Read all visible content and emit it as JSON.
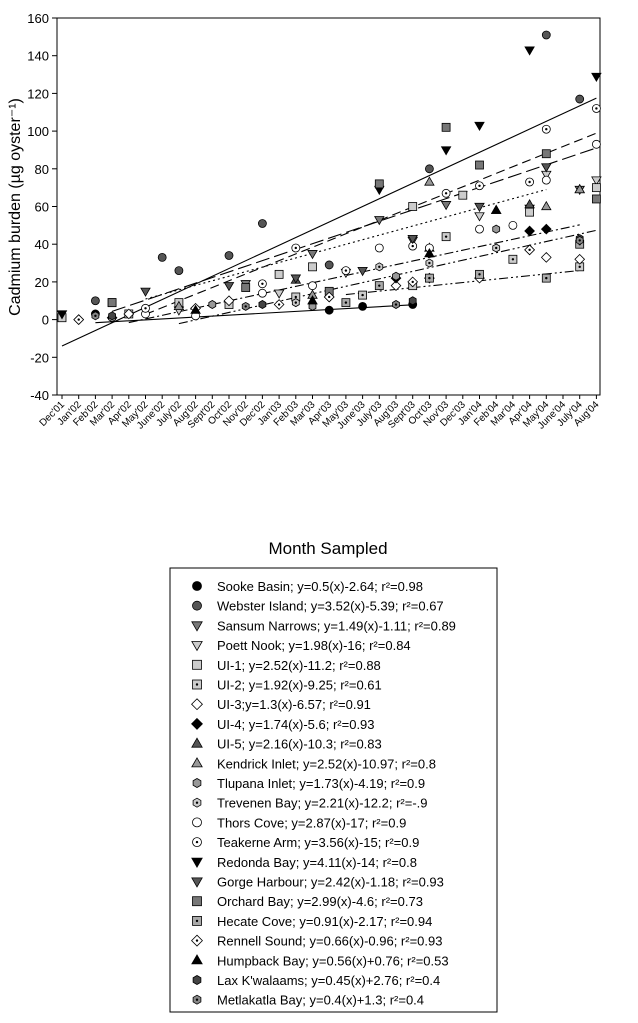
{
  "chart_data": {
    "type": "scatter",
    "x_label": "Month Sampled",
    "y_label": "Cadmium burden (µg oyster⁻¹)",
    "categories": [
      "Dec'01",
      "Jan'02",
      "Feb'02",
      "Mar'02",
      "Apr'02",
      "May'02",
      "June'02",
      "July'02",
      "Aug'02",
      "Sept'02",
      "Oct'02",
      "Nov'02",
      "Dec'02",
      "Jan'03",
      "Feb'03",
      "Mar'03",
      "Apr'03",
      "May'03",
      "June'03",
      "July'03",
      "Aug'03",
      "Sept'03",
      "Oct'03",
      "Nov'03",
      "Dec'03",
      "Jan'04",
      "Feb'04",
      "Mar'04",
      "Apr'04",
      "May'04",
      "June'04",
      "July'04",
      "Aug'04"
    ],
    "ylim": [
      -40,
      160
    ],
    "yticks": [
      -40,
      -20,
      0,
      20,
      40,
      60,
      80,
      100,
      120,
      140,
      160
    ],
    "series": [
      {
        "name": "Sooke Basin; y=0.5(x)-2.64; r²=0.98",
        "marker": "circle",
        "color": "#000000",
        "fit": [
          0.5,
          -2.64
        ],
        "line_style": "solid",
        "x": [
          "Feb'02",
          "Apr'03",
          "June'03",
          "Sept'03"
        ],
        "values": [
          3,
          5,
          7,
          8
        ]
      },
      {
        "name": "Webster Island; y=3.52(x)-5.39; r²=0.67",
        "marker": "circle",
        "color": "#555555",
        "x": [
          "Feb'02",
          "June'02",
          "July'02",
          "Oct'02",
          "Dec'02",
          "Apr'03",
          "Oct'03",
          "May'04",
          "July'04"
        ],
        "values": [
          10,
          33,
          26,
          34,
          51,
          29,
          80,
          151,
          117
        ]
      },
      {
        "name": "Sansum Narrows; y=1.49(x)-1.11; r²=0.89",
        "marker": "tri-down",
        "color": "#777777",
        "x": [
          "Nov'02",
          "Mar'03",
          "July'03",
          "Nov'03",
          "Apr'04",
          "July'04"
        ],
        "values": [
          19,
          35,
          53,
          61,
          59,
          69
        ]
      },
      {
        "name": "Poett Nook; y=1.98(x)-16; r²=0.84",
        "marker": "tri-down",
        "color": "#cccccc",
        "fit": [
          1.98,
          -16
        ],
        "line_style": "dashdotdot",
        "x": [
          "July'02",
          "Jan'03",
          "May'03",
          "Sept'03",
          "Jan'04",
          "May'04",
          "Aug'04"
        ],
        "values": [
          5,
          14,
          25,
          42,
          55,
          77,
          74
        ]
      },
      {
        "name": "UI-1; y=2.52(x)-11.2; r²=0.88",
        "marker": "square",
        "color": "#cccccc",
        "x": [
          "Dec'01",
          "Mar'02",
          "July'02",
          "Jan'03",
          "Mar'03",
          "Sept'03",
          "Dec'03",
          "Apr'04",
          "Aug'04"
        ],
        "values": [
          1,
          9,
          9,
          24,
          28,
          60,
          66,
          57,
          70
        ]
      },
      {
        "name": "UI-2; y=1.92(x)-9.25; r²=0.61",
        "marker": "square",
        "color": "#cccccc",
        "dot": true,
        "fit": [
          1.92,
          -9.25
        ],
        "line_style": "dashdot",
        "x": [
          "Apr'02",
          "Oct'02",
          "Feb'03",
          "June'03",
          "Sept'03",
          "Nov'03",
          "Mar'04",
          "July'04"
        ],
        "values": [
          3,
          8,
          12,
          13,
          18,
          44,
          32,
          28
        ]
      },
      {
        "name": "UI-3;y=1.3(x)-6.57; r²=0.91",
        "marker": "diamond",
        "color": "#ffffff",
        "x": [
          "Jan'02",
          "Apr'02",
          "Oct'02",
          "Apr'03",
          "Aug'03",
          "Oct'03",
          "Jan'04",
          "Apr'04",
          "May'04",
          "July'04"
        ],
        "values": [
          0,
          3,
          10,
          12,
          18,
          22,
          22,
          37,
          33,
          32
        ]
      },
      {
        "name": "UI-4; y=1.74(x)-5.6; r²=0.93",
        "marker": "diamond",
        "color": "#000000",
        "x": [
          "Mar'02",
          "Aug'03",
          "Apr'04",
          "May'04"
        ],
        "values": [
          1,
          22,
          47,
          48
        ]
      },
      {
        "name": "UI-5; y=2.16(x)-10.3; r²=0.83",
        "marker": "tri-up",
        "color": "#555555",
        "x": [
          "Feb'03",
          "Oct'03",
          "Feb'04",
          "Apr'04",
          "July'04"
        ],
        "values": [
          21,
          38,
          58,
          61,
          69
        ]
      },
      {
        "name": "Kendrick Inlet; y=2.52(x)-10.97; r²=0.8",
        "marker": "tri-up",
        "color": "#999999",
        "x": [
          "July'02",
          "Mar'03",
          "Oct'03",
          "May'04",
          "July'04"
        ],
        "values": [
          7,
          13,
          73,
          60,
          69
        ]
      },
      {
        "name": "Tlupana Inlet; y=1.73(x)-4.19; r²=0.9",
        "marker": "hexagon",
        "color": "#999999",
        "x": [
          "Mar'02",
          "Sept'02",
          "Mar'03",
          "Aug'03",
          "Feb'04"
        ],
        "values": [
          1,
          8,
          7,
          23,
          48
        ]
      },
      {
        "name": "Trevenen Bay; y=2.21(x)-12.2; r²=-.9",
        "marker": "hexagon",
        "color": "#cccccc",
        "dot": true,
        "x": [
          "Feb'03",
          "Apr'03",
          "July'03",
          "Oct'03",
          "Feb'04"
        ],
        "values": [
          9,
          14,
          28,
          30,
          38
        ]
      },
      {
        "name": "Thors Cove; y=2.87(x)-17; r²=0.9",
        "marker": "circle",
        "color": "#ffffff",
        "x": [
          "May'02",
          "Aug'02",
          "Dec'02",
          "Mar'03",
          "July'03",
          "Oct'03",
          "Jan'04",
          "Mar'04",
          "May'04",
          "Aug'04"
        ],
        "values": [
          3,
          2,
          14,
          18,
          38,
          38,
          48,
          50,
          74,
          93
        ]
      },
      {
        "name": "Teakerne Arm; y=3.56(x)-15; r²=0.9",
        "marker": "circle",
        "color": "#ffffff",
        "dot": true,
        "fit": [
          3.56,
          -15
        ],
        "line_style": "dash",
        "x": [
          "May'02",
          "Dec'02",
          "Feb'03",
          "May'03",
          "Sept'03",
          "Nov'03",
          "Jan'04",
          "Apr'04",
          "May'04",
          "Aug'04"
        ],
        "values": [
          6,
          19,
          38,
          26,
          39,
          67,
          71,
          73,
          101,
          112
        ]
      },
      {
        "name": "Redonda Bay; y=4.11(x)-14; r²=0.8",
        "marker": "tri-down",
        "color": "#000000",
        "fit": [
          4.11,
          -14
        ],
        "line_style": "solid",
        "x": [
          "Dec'01",
          "July'03",
          "Nov'03",
          "Jan'04",
          "Apr'04",
          "Aug'04"
        ],
        "values": [
          3,
          69,
          90,
          103,
          143,
          129
        ]
      },
      {
        "name": "Gorge Harbour; y=2.42(x)-1.18; r²=0.93",
        "marker": "tri-down",
        "color": "#555555",
        "fit": [
          2.42,
          -1.18
        ],
        "line_style": "dot",
        "x": [
          "May'02",
          "Oct'02",
          "Feb'03",
          "June'03",
          "Sept'03",
          "Jan'04",
          "May'04"
        ],
        "values": [
          15,
          18,
          22,
          26,
          43,
          60,
          81
        ]
      },
      {
        "name": "Orchard Bay; y=2.99(x)-4.6; r²=0.73",
        "marker": "square",
        "color": "#777777",
        "fit": [
          2.99,
          -4.6
        ],
        "line_style": "longdash",
        "x": [
          "Mar'02",
          "Nov'02",
          "Apr'03",
          "July'03",
          "Nov'03",
          "Jan'04",
          "May'04",
          "Aug'04"
        ],
        "values": [
          9,
          17,
          15,
          72,
          102,
          82,
          88,
          64
        ]
      },
      {
        "name": "Hecate Cove; y=0.91(x)-2.17; r²=0.94",
        "marker": "square",
        "color": "#aaaaaa",
        "dot": true,
        "fit": [
          0.91,
          -2.17
        ],
        "line_style": "dashdotdot",
        "x": [
          "May'03",
          "July'03",
          "Oct'03",
          "Jan'04",
          "May'04",
          "July'04"
        ],
        "values": [
          9,
          18,
          22,
          24,
          22,
          40
        ]
      },
      {
        "name": "Rennell Sound; y=0.66(x)-0.96; r²=0.93",
        "marker": "diamond",
        "color": "#ffffff",
        "dot": true,
        "x": [
          "Jan'02",
          "Aug'02",
          "Jan'03",
          "Apr'03",
          "Sept'03",
          "Apr'04"
        ],
        "values": [
          0,
          6,
          8,
          12,
          20,
          37
        ]
      },
      {
        "name": "Humpback Bay; y=0.56(x)+0.76; r²=0.53",
        "marker": "tri-up",
        "color": "#000000",
        "x": [
          "Aug'02",
          "Mar'03",
          "Oct'03",
          "Feb'04"
        ],
        "values": [
          5,
          10,
          35,
          58
        ]
      },
      {
        "name": "Lax K'walaams; y=0.45(x)+2.76; r²=0.4",
        "marker": "hexagon",
        "color": "#444444",
        "x": [
          "Mar'02",
          "Dec'02",
          "Sept'03",
          "July'04"
        ],
        "values": [
          2,
          8,
          10,
          43
        ]
      },
      {
        "name": "Metlakatla Bay; y=0.4(x)+1.3; r²=0.4",
        "marker": "hexagon",
        "color": "#888888",
        "dot": true,
        "x": [
          "Feb'02",
          "Nov'02",
          "Aug'03",
          "July'04"
        ],
        "values": [
          2,
          7,
          8,
          42
        ]
      }
    ]
  }
}
